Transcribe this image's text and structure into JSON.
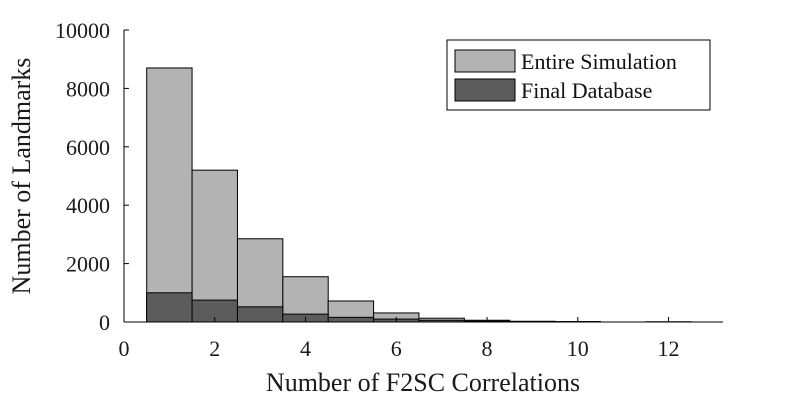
{
  "chart_data": {
    "type": "bar",
    "title": "",
    "xlabel": "Number of F2SC Correlations",
    "ylabel": "Number of Landmarks",
    "xlim": [
      0,
      13.2
    ],
    "ylim": [
      0,
      10000
    ],
    "xticks": [
      0,
      2,
      4,
      6,
      8,
      10,
      12
    ],
    "yticks": [
      0,
      2000,
      4000,
      6000,
      8000,
      10000
    ],
    "bin_width": 1,
    "x": [
      1,
      2,
      3,
      4,
      5,
      6,
      7,
      8,
      9,
      10,
      11,
      12
    ],
    "series": [
      {
        "name": "Entire Simulation",
        "color": "#b3b3b3",
        "values": [
          8700,
          5200,
          2850,
          1550,
          720,
          310,
          130,
          60,
          25,
          15,
          0,
          5
        ]
      },
      {
        "name": "Final Database",
        "color": "#5c5c5c",
        "values": [
          1000,
          750,
          520,
          270,
          160,
          100,
          60,
          30,
          15,
          8,
          0,
          5
        ]
      }
    ],
    "legend_position": "top-right",
    "grid": false
  }
}
